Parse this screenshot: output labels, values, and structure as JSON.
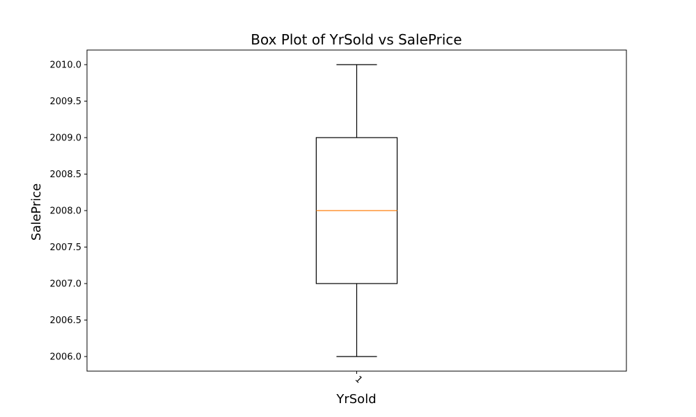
{
  "chart_data": {
    "type": "box",
    "title": "Box Plot of YrSold vs SalePrice",
    "xlabel": "YrSold",
    "ylabel": "SalePrice",
    "categories": [
      "1"
    ],
    "ylim": [
      2005.8,
      2010.2
    ],
    "yticks": [
      "2006.0",
      "2006.5",
      "2007.0",
      "2007.5",
      "2008.0",
      "2008.5",
      "2009.0",
      "2009.5",
      "2010.0"
    ],
    "boxes": [
      {
        "category": "1",
        "whisker_low": 2006.0,
        "q1": 2007.0,
        "median": 2008.0,
        "q3": 2009.0,
        "whisker_high": 2010.0
      }
    ],
    "grid": false,
    "colors": {
      "box": "#000000",
      "median": "#ff7f0e"
    }
  }
}
